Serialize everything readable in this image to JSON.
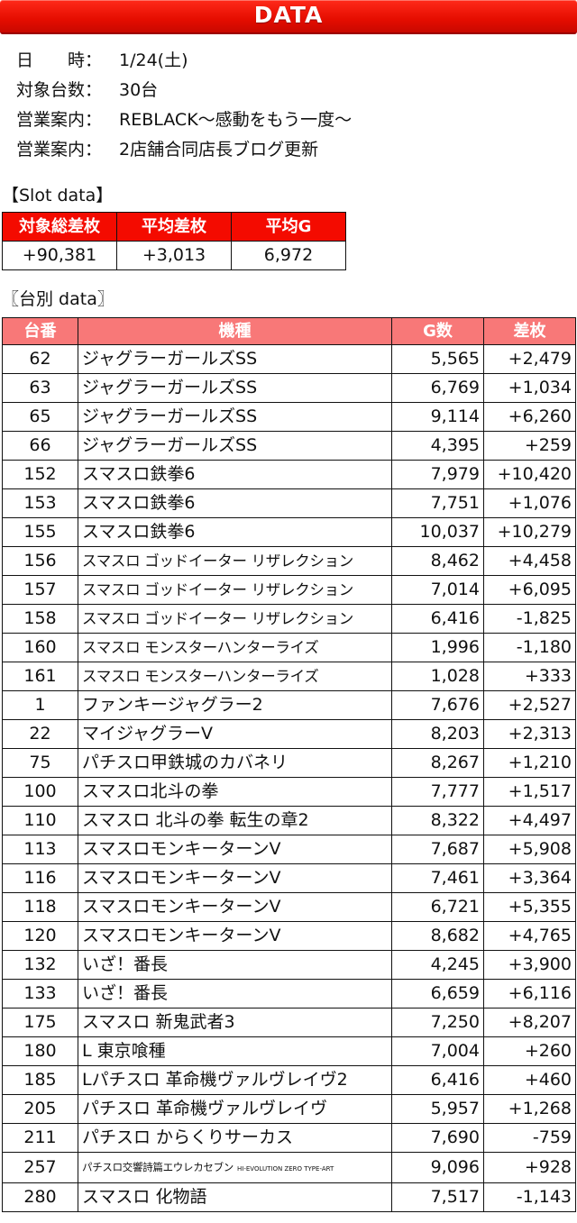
{
  "header": {
    "title": "DATA"
  },
  "info": [
    {
      "key": "日　　時：",
      "value": "1/24(土)"
    },
    {
      "key": "対象台数：",
      "value": "30台"
    },
    {
      "key": "営業案内：",
      "value": "REBLACK～感動をもう一度～"
    },
    {
      "key": "営業案内：",
      "value": "2店舗合同店長ブログ更新"
    }
  ],
  "slot_section": {
    "label": "【Slot data】",
    "headers": [
      "対象総差枚",
      "平均差枚",
      "平均G"
    ],
    "values": [
      "+90,381",
      "+3,013",
      "6,972"
    ]
  },
  "unit_section": {
    "label": "〖台別 data〗",
    "headers": [
      "台番",
      "機種",
      "G数",
      "差枚"
    ],
    "rows": [
      {
        "no": "62",
        "name": "ジャグラーガールズSS",
        "g": "5,565",
        "diff": "+2,479"
      },
      {
        "no": "63",
        "name": "ジャグラーガールズSS",
        "g": "6,769",
        "diff": "+1,034"
      },
      {
        "no": "65",
        "name": "ジャグラーガールズSS",
        "g": "9,114",
        "diff": "+6,260"
      },
      {
        "no": "66",
        "name": "ジャグラーガールズSS",
        "g": "4,395",
        "diff": "+259"
      },
      {
        "no": "152",
        "name": "スマスロ鉄拳6",
        "g": "7,979",
        "diff": "+10,420"
      },
      {
        "no": "153",
        "name": "スマスロ鉄拳6",
        "g": "7,751",
        "diff": "+1,076"
      },
      {
        "no": "155",
        "name": "スマスロ鉄拳6",
        "g": "10,037",
        "diff": "+10,279"
      },
      {
        "no": "156",
        "name": "スマスロ ゴッドイーター リザレクション",
        "g": "8,462",
        "diff": "+4,458"
      },
      {
        "no": "157",
        "name": "スマスロ ゴッドイーター リザレクション",
        "g": "7,014",
        "diff": "+6,095"
      },
      {
        "no": "158",
        "name": "スマスロ ゴッドイーター リザレクション",
        "g": "6,416",
        "diff": "-1,825"
      },
      {
        "no": "160",
        "name": "スマスロ モンスターハンターライズ",
        "g": "1,996",
        "diff": "-1,180"
      },
      {
        "no": "161",
        "name": "スマスロ モンスターハンターライズ",
        "g": "1,028",
        "diff": "+333"
      },
      {
        "no": "1",
        "name": "ファンキージャグラー2",
        "g": "7,676",
        "diff": "+2,527"
      },
      {
        "no": "22",
        "name": "マイジャグラーV",
        "g": "8,203",
        "diff": "+2,313"
      },
      {
        "no": "75",
        "name": "パチスロ甲鉄城のカバネリ",
        "g": "8,267",
        "diff": "+1,210"
      },
      {
        "no": "100",
        "name": "スマスロ北斗の拳",
        "g": "7,777",
        "diff": "+1,517"
      },
      {
        "no": "110",
        "name": "スマスロ 北斗の拳 転生の章2",
        "g": "8,322",
        "diff": "+4,497"
      },
      {
        "no": "113",
        "name": "スマスロモンキーターンV",
        "g": "7,687",
        "diff": "+5,908"
      },
      {
        "no": "116",
        "name": "スマスロモンキーターンV",
        "g": "7,461",
        "diff": "+3,364"
      },
      {
        "no": "118",
        "name": "スマスロモンキーターンV",
        "g": "6,721",
        "diff": "+5,355"
      },
      {
        "no": "120",
        "name": "スマスロモンキーターンV",
        "g": "8,682",
        "diff": "+4,765"
      },
      {
        "no": "132",
        "name": "いざ！番長",
        "g": "4,245",
        "diff": "+3,900"
      },
      {
        "no": "133",
        "name": "いざ！番長",
        "g": "6,659",
        "diff": "+6,116"
      },
      {
        "no": "175",
        "name": "スマスロ 新鬼武者3",
        "g": "7,250",
        "diff": "+8,207"
      },
      {
        "no": "180",
        "name": "L 東京喰種",
        "g": "7,004",
        "diff": "+260"
      },
      {
        "no": "185",
        "name": "Lパチスロ 革命機ヴァルヴレイヴ2",
        "g": "6,416",
        "diff": "+460"
      },
      {
        "no": "205",
        "name": "パチスロ 革命機ヴァルヴレイヴ",
        "g": "5,957",
        "diff": "+1,268"
      },
      {
        "no": "211",
        "name": "パチスロ からくりサーカス",
        "g": "7,690",
        "diff": "-759"
      },
      {
        "no": "257",
        "name": "パチスロ交響詩篇エウレカセブン",
        "name_sub": "HI-EVOLUTION ZERO TYPE-ART",
        "g": "9,096",
        "diff": "+928"
      },
      {
        "no": "280",
        "name": "スマスロ 化物語",
        "g": "7,517",
        "diff": "-1,143"
      }
    ]
  }
}
